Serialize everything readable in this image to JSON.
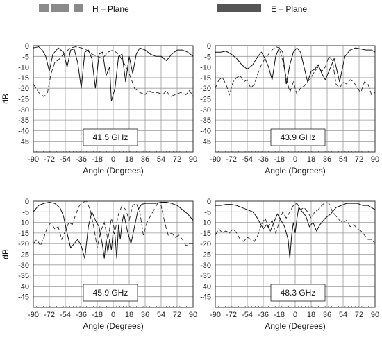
{
  "legend": {
    "h_plane": "H – Plane",
    "e_plane": "E – Plane",
    "h_color": "#8a8a8a",
    "e_color": "#555555"
  },
  "chart_data": [
    {
      "type": "line",
      "annotation": "41.5 GHz",
      "xlabel": "Angle (Degrees)",
      "ylabel": "dB",
      "xlim": [
        -90,
        90
      ],
      "ylim": [
        -50,
        0
      ],
      "xticks": [
        -90,
        -72,
        -54,
        -36,
        -18,
        0,
        18,
        36,
        54,
        72,
        90
      ],
      "yticks": [
        0,
        -5,
        -10,
        -15,
        -20,
        -25,
        -30,
        -35,
        -40,
        -45
      ],
      "grid": true,
      "legend_position": "top",
      "series": [
        {
          "name": "H – Plane",
          "style": "dashed",
          "x": [
            -90,
            -84,
            -78,
            -74,
            -70,
            -66,
            -60,
            -54,
            -48,
            -42,
            -36,
            -30,
            -24,
            -18,
            -12,
            -6,
            0,
            6,
            12,
            18,
            24,
            30,
            36,
            40,
            44,
            50,
            56,
            60,
            64,
            70,
            76,
            82,
            86,
            90
          ],
          "y": [
            -18,
            -22,
            -24,
            -22,
            -13,
            -8,
            -6,
            -3,
            -1,
            -0.5,
            -1,
            -2,
            -4,
            -5,
            -6,
            -3,
            -2,
            -4,
            -8,
            -13,
            -20,
            -22,
            -23,
            -21,
            -22,
            -22,
            -23,
            -21,
            -24,
            -23,
            -22,
            -23,
            -21,
            -24
          ]
        },
        {
          "name": "E – Plane",
          "style": "solid",
          "x": [
            -90,
            -84,
            -80,
            -76,
            -72,
            -68,
            -62,
            -56,
            -52,
            -48,
            -44,
            -40,
            -36,
            -32,
            -28,
            -24,
            -20,
            -16,
            -12,
            -8,
            -4,
            -2,
            2,
            6,
            10,
            14,
            18,
            22,
            26,
            30,
            36,
            42,
            48,
            54,
            60,
            66,
            72,
            78,
            84,
            90
          ],
          "y": [
            -1,
            -0.5,
            -2,
            -5,
            -12,
            -4,
            -1,
            -3,
            -10,
            -2,
            -1.5,
            -8,
            -20,
            -3,
            -2,
            -6,
            -20,
            -4,
            -3,
            -14,
            -10,
            -26,
            -20,
            -5,
            -4,
            -17,
            -5,
            -13,
            -4,
            -1,
            -2,
            -4,
            -5,
            -5,
            -7,
            -4,
            -2,
            -2,
            -3,
            -5
          ]
        }
      ]
    },
    {
      "type": "line",
      "annotation": "43.9 GHz",
      "xlabel": "Angle (Degrees)",
      "ylabel": "",
      "xlim": [
        -90,
        90
      ],
      "ylim": [
        -50,
        0
      ],
      "xticks": [
        -90,
        -72,
        -54,
        -36,
        -18,
        0,
        18,
        36,
        54,
        72,
        90
      ],
      "yticks": [
        0,
        -5,
        -10,
        -15,
        -20,
        -25,
        -30,
        -35,
        -40,
        -45
      ],
      "grid": true,
      "series": [
        {
          "name": "H – Plane",
          "style": "dashed",
          "x": [
            -90,
            -86,
            -82,
            -78,
            -74,
            -70,
            -66,
            -62,
            -58,
            -54,
            -50,
            -46,
            -42,
            -38,
            -34,
            -30,
            -26,
            -22,
            -18,
            -14,
            -10,
            -6,
            -2,
            2,
            6,
            10,
            14,
            18,
            22,
            26,
            30,
            34,
            38,
            42,
            46,
            50,
            54,
            58,
            62,
            66,
            70,
            74,
            78,
            82,
            86,
            90
          ],
          "y": [
            -20,
            -16,
            -15,
            -18,
            -23,
            -17,
            -15,
            -14,
            -17,
            -16,
            -20,
            -18,
            -13,
            -9,
            -6,
            -4,
            -2,
            -0.5,
            -1,
            -7,
            -15,
            -22,
            -17,
            -23,
            -20,
            -19,
            -17,
            -15,
            -12,
            -10,
            -12,
            -10,
            -5,
            -7,
            -18,
            -20,
            -17,
            -18,
            -16,
            -17,
            -20,
            -22,
            -17,
            -18,
            -23,
            -22
          ]
        },
        {
          "name": "E – Plane",
          "style": "solid",
          "x": [
            -90,
            -84,
            -78,
            -72,
            -66,
            -60,
            -54,
            -48,
            -42,
            -38,
            -34,
            -30,
            -26,
            -22,
            -18,
            -14,
            -10,
            -6,
            -2,
            2,
            6,
            10,
            14,
            18,
            22,
            26,
            30,
            34,
            38,
            44,
            50,
            56,
            62,
            68,
            74,
            80,
            86,
            90
          ],
          "y": [
            -3,
            -3,
            -2.5,
            -4,
            -6,
            -9,
            -11,
            -9,
            -5,
            -3,
            -6,
            -10,
            -16,
            -5,
            -1,
            -3,
            -18,
            -9,
            -3,
            -1,
            -3,
            -10,
            -17,
            -12,
            -11,
            -9,
            -13,
            -16,
            -12,
            -6,
            -17,
            -5,
            -2,
            -1,
            -1.5,
            -2,
            -2,
            -3
          ]
        }
      ]
    },
    {
      "type": "line",
      "annotation": "45.9 GHz",
      "xlabel": "Angle (Degrees)",
      "ylabel": "dB",
      "xlim": [
        -90,
        90
      ],
      "ylim": [
        -50,
        0
      ],
      "xticks": [
        -90,
        -72,
        -54,
        -36,
        -18,
        0,
        18,
        36,
        54,
        72,
        90
      ],
      "yticks": [
        0,
        -5,
        -10,
        -15,
        -20,
        -25,
        -30,
        -35,
        -40,
        -45
      ],
      "grid": true,
      "series": [
        {
          "name": "H – Plane",
          "style": "dashed",
          "x": [
            -90,
            -86,
            -82,
            -78,
            -74,
            -70,
            -66,
            -62,
            -58,
            -54,
            -50,
            -46,
            -42,
            -38,
            -34,
            -30,
            -26,
            -22,
            -18,
            -14,
            -10,
            -6,
            -2,
            2,
            6,
            10,
            14,
            18,
            22,
            26,
            30,
            34,
            38,
            42,
            46,
            50,
            54,
            58,
            62,
            66,
            70,
            74,
            78,
            82,
            86,
            90
          ],
          "y": [
            -20,
            -18,
            -21,
            -17,
            -12,
            -10,
            -13,
            -12,
            -18,
            -14,
            -10,
            -11,
            -6,
            -2,
            -0.5,
            0,
            -4,
            -12,
            -22,
            -14,
            -10,
            -18,
            -8,
            -14,
            -6,
            -2,
            -4,
            -9,
            -2,
            -1,
            -5,
            -16,
            -10,
            -7,
            -4,
            -1,
            -2,
            -10,
            -16,
            -15,
            -17,
            -16,
            -18,
            -21,
            -20,
            -20
          ]
        },
        {
          "name": "E – Plane",
          "style": "solid",
          "x": [
            -90,
            -84,
            -78,
            -72,
            -66,
            -60,
            -56,
            -52,
            -48,
            -44,
            -40,
            -36,
            -32,
            -28,
            -24,
            -20,
            -16,
            -12,
            -10,
            -8,
            -6,
            -4,
            -2,
            0,
            2,
            4,
            6,
            8,
            10,
            12,
            16,
            20,
            24,
            28,
            32,
            36,
            42,
            48,
            54,
            60,
            66,
            72,
            78,
            84,
            90
          ],
          "y": [
            -5,
            -2,
            -1,
            -0.5,
            -1,
            -3,
            -7,
            -15,
            -22,
            -20,
            -18,
            -21,
            -27,
            -12,
            -5,
            -9,
            -12,
            -21,
            -27,
            -18,
            -24,
            -18,
            -23,
            -14,
            -16,
            -27,
            -11,
            -18,
            -10,
            -6,
            -14,
            -20,
            -12,
            -4,
            -1.5,
            -1,
            -1,
            -1,
            -0.5,
            -0.5,
            -1,
            -2,
            -4,
            -6,
            -9
          ]
        }
      ]
    },
    {
      "type": "line",
      "annotation": "48.3 GHz",
      "xlabel": "Angle (Degrees)",
      "ylabel": "",
      "xlim": [
        -90,
        90
      ],
      "ylim": [
        -50,
        0
      ],
      "xticks": [
        -90,
        -72,
        -54,
        -36,
        -18,
        0,
        18,
        36,
        54,
        72,
        90
      ],
      "yticks": [
        0,
        -5,
        -10,
        -15,
        -20,
        -25,
        -30,
        -35,
        -40,
        -45
      ],
      "grid": true,
      "series": [
        {
          "name": "H – Plane",
          "style": "dashed",
          "x": [
            -90,
            -86,
            -82,
            -78,
            -74,
            -70,
            -66,
            -62,
            -58,
            -54,
            -50,
            -46,
            -42,
            -38,
            -34,
            -30,
            -26,
            -22,
            -18,
            -14,
            -10,
            -6,
            -2,
            2,
            6,
            10,
            14,
            18,
            22,
            26,
            30,
            34,
            38,
            42,
            46,
            50,
            54,
            58,
            62,
            66,
            70,
            74,
            78,
            82,
            86,
            90
          ],
          "y": [
            -16,
            -13,
            -15,
            -14,
            -15,
            -13,
            -15,
            -18,
            -19,
            -17,
            -18,
            -19,
            -16,
            -11,
            -8,
            -12,
            -9,
            -15,
            -10,
            -5,
            -8,
            -5,
            -2,
            -1,
            -4,
            -3,
            -5,
            -8,
            -5,
            -4,
            -2,
            -0.5,
            -1,
            -5,
            -7,
            -9,
            -10,
            -9,
            -12,
            -11,
            -13,
            -14,
            -16,
            -18,
            -18,
            -20
          ]
        },
        {
          "name": "E – Plane",
          "style": "solid",
          "x": [
            -90,
            -84,
            -78,
            -72,
            -66,
            -60,
            -54,
            -48,
            -44,
            -40,
            -36,
            -32,
            -28,
            -24,
            -20,
            -16,
            -12,
            -8,
            -6,
            -4,
            -2,
            0,
            2,
            4,
            8,
            12,
            16,
            20,
            24,
            28,
            34,
            40,
            46,
            52,
            58,
            64,
            70,
            76,
            82,
            86,
            90
          ],
          "y": [
            -2,
            -2,
            -1.5,
            -1.5,
            -2,
            -3,
            -4,
            -5,
            -7,
            -10,
            -13,
            -11,
            -14,
            -10,
            -6,
            -9,
            -12,
            -18,
            -27,
            -16,
            -10,
            -15,
            -8,
            -3,
            -5,
            -7,
            -12,
            -10,
            -14,
            -11,
            -8,
            -6,
            -3,
            -2,
            -1,
            -1,
            -1,
            -2,
            -2,
            -3,
            -4
          ]
        }
      ]
    }
  ]
}
